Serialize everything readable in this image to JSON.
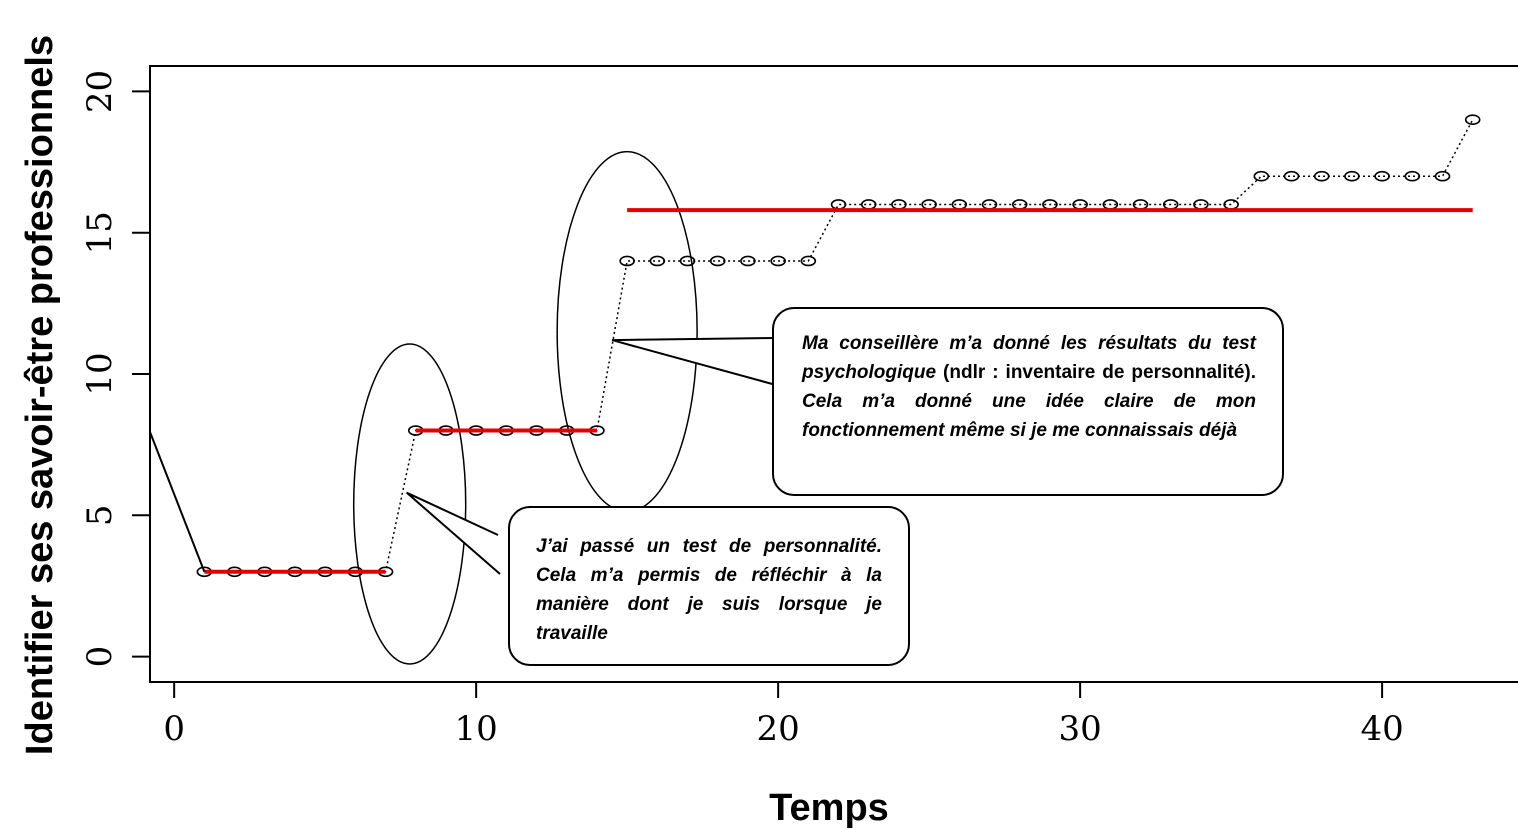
{
  "chart_data": {
    "type": "line",
    "xlabel": "Temps",
    "ylabel": "Identifier ses savoir-être professionnels",
    "xlim": [
      -0.8,
      44.5
    ],
    "ylim": [
      -0.9,
      20.9
    ],
    "xticks": [
      0,
      10,
      20,
      30,
      40
    ],
    "yticks": [
      0,
      5,
      10,
      15,
      20
    ],
    "grid": false,
    "series": [
      {
        "style": "points-dotted",
        "x": [
          1,
          2,
          3,
          4,
          5,
          6,
          7,
          8,
          9,
          10,
          11,
          12,
          13,
          14,
          15,
          16,
          17,
          18,
          19,
          20,
          21,
          22,
          23,
          24,
          25,
          26,
          27,
          28,
          29,
          30,
          31,
          32,
          33,
          34,
          35,
          36,
          37,
          38,
          39,
          40,
          41,
          42,
          43
        ],
        "y": [
          3,
          3,
          3,
          3,
          3,
          3,
          3,
          8,
          8,
          8,
          8,
          8,
          8,
          8,
          14,
          14,
          14,
          14,
          14,
          14,
          14,
          16,
          16,
          16,
          16,
          16,
          16,
          16,
          16,
          16,
          16,
          16,
          16,
          16,
          16,
          17,
          17,
          17,
          17,
          17,
          17,
          17,
          19
        ]
      }
    ],
    "plateaus": [
      {
        "x_start": 1,
        "x_end": 7,
        "y": 3
      },
      {
        "x_start": 8,
        "x_end": 14,
        "y": 8
      },
      {
        "x_start": 15,
        "x_end": 43,
        "y": 15.8
      }
    ],
    "annotations": [
      {
        "id": "callout-2",
        "parts": [
          {
            "text": "J’ai passé un test de personnalité. Cela m’a permis de réfléchir à la manière dont je suis lorsque je travaille",
            "italic": true
          }
        ]
      },
      {
        "id": "callout-1",
        "parts": [
          {
            "text": "Ma conseillère m’a donné les résultats du test psychologique",
            "italic": true
          },
          {
            "text": " (ndlr : inventaire de personnalité). ",
            "italic": false
          },
          {
            "text": "Cela m’a donné une idée claire de mon fonctionnement même si je me connaissais déjà",
            "italic": true
          }
        ]
      }
    ]
  },
  "colors": {
    "plateau": "#e50000",
    "axis": "#000000",
    "points": "#000000"
  }
}
